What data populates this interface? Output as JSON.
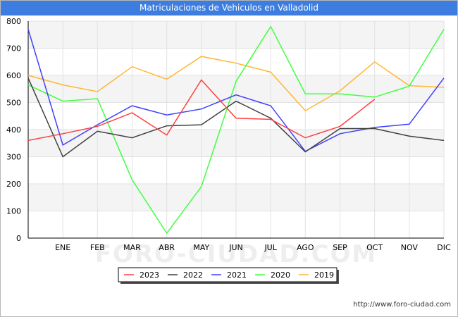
{
  "header": {
    "title": "Matriculaciones de Vehiculos en Valladolid"
  },
  "footer": {
    "url": "http://www.foro-ciudad.com"
  },
  "watermark": "FORO-CIUDAD.COM",
  "chart_data": {
    "type": "line",
    "title": "Matriculaciones de Vehiculos en Valladolid",
    "xlabel": "",
    "ylabel": "",
    "categories": [
      "",
      "ENE",
      "FEB",
      "MAR",
      "ABR",
      "MAY",
      "JUN",
      "JUL",
      "AGO",
      "SEP",
      "OCT",
      "NOV",
      "DIC"
    ],
    "ylim": [
      0,
      800
    ],
    "yticks": [
      0,
      100,
      200,
      300,
      400,
      500,
      600,
      700,
      800
    ],
    "grid": true,
    "legend_position": "bottom-center",
    "series": [
      {
        "name": "2023",
        "color": "#ff4040",
        "values": [
          360,
          385,
          412,
          462,
          380,
          583,
          442,
          438,
          370,
          412,
          512,
          null,
          null
        ]
      },
      {
        "name": "2022",
        "color": "#404040",
        "values": [
          590,
          300,
          394,
          370,
          414,
          418,
          505,
          442,
          318,
          404,
          404,
          376,
          360
        ]
      },
      {
        "name": "2021",
        "color": "#4040ff",
        "values": [
          770,
          343,
          418,
          488,
          454,
          476,
          528,
          488,
          320,
          385,
          408,
          420,
          590
        ]
      },
      {
        "name": "2020",
        "color": "#40ff40",
        "values": [
          565,
          505,
          514,
          215,
          18,
          190,
          578,
          780,
          532,
          532,
          520,
          560,
          770
        ]
      },
      {
        "name": "2019",
        "color": "#ffb733",
        "values": [
          600,
          565,
          540,
          632,
          586,
          670,
          645,
          612,
          470,
          543,
          650,
          562,
          556
        ]
      }
    ]
  }
}
